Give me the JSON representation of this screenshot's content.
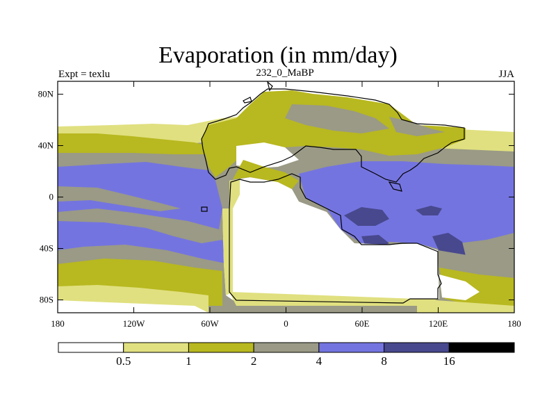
{
  "title": "Evaporation (in mm/day)",
  "left_string": "Expt = texlu",
  "center_string": "232_0_MaBP",
  "right_string": "JJA",
  "axes": {
    "x_ticks": [
      {
        "value": -180,
        "label": "180"
      },
      {
        "value": -120,
        "label": "120W"
      },
      {
        "value": -60,
        "label": "60W"
      },
      {
        "value": 0,
        "label": "0"
      },
      {
        "value": 60,
        "label": "60E"
      },
      {
        "value": 120,
        "label": "120E"
      },
      {
        "value": 180,
        "label": "180"
      }
    ],
    "y_ticks": [
      {
        "value": 80,
        "label": "80N"
      },
      {
        "value": 40,
        "label": "40N"
      },
      {
        "value": 0,
        "label": "0"
      },
      {
        "value": -40,
        "label": "40S"
      },
      {
        "value": -80,
        "label": "80S"
      }
    ],
    "lon_range": [
      -180,
      180
    ],
    "lat_range": [
      -90,
      90
    ]
  },
  "colorbar": {
    "colors": [
      "#ffffff",
      "#e0e080",
      "#b8b820",
      "#9a9a86",
      "#7474e0",
      "#48488e",
      "#000000"
    ],
    "labels": [
      "0.5",
      "1",
      "2",
      "4",
      "8",
      "16"
    ]
  }
}
